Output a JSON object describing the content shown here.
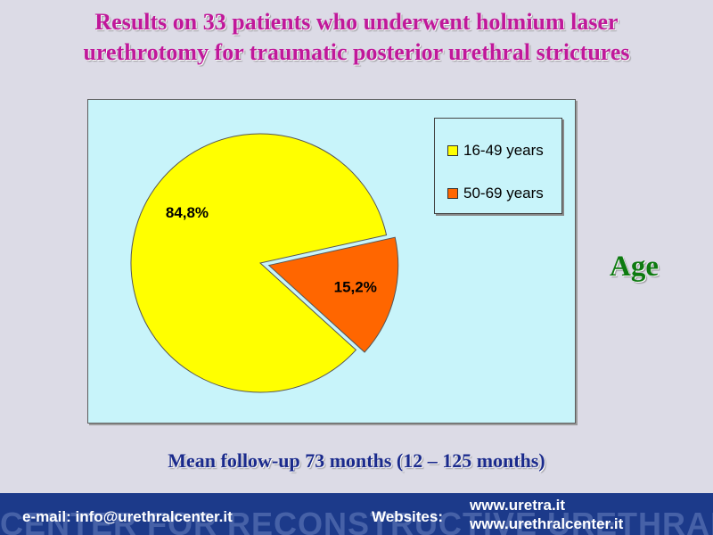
{
  "slide": {
    "title_line1": "Results on 33 patients who underwent holmium laser",
    "title_line2": "urethrotomy for traumatic posterior urethral strictures",
    "side_label": "Age",
    "followup": "Mean follow-up 73 months (12 – 125 months)"
  },
  "colors": {
    "title": "#c0189a",
    "side_label": "#0d7a10",
    "followup": "#1a2a8c",
    "footer_bg": "#1c3a8a",
    "plot_bg": "#c8f4fa"
  },
  "chart_data": {
    "type": "pie",
    "title": "",
    "series": [
      {
        "name": "16-49 years",
        "value": 84.8,
        "label": "84,8%",
        "color": "#ffff00",
        "exploded": false
      },
      {
        "name": "50-69 years",
        "value": 15.2,
        "label": "15,2%",
        "color": "#ff6600",
        "exploded": true
      }
    ],
    "legend_position": "top-right"
  },
  "footer": {
    "email": "e-mail: info@urethralcenter.it",
    "websites_label": "Websites:",
    "site1": "www.uretra.it",
    "site2": "www.urethralcenter.it",
    "watermark": "CENTER FOR RECONSTRUCTIVE URETHRAL SURGERY"
  }
}
